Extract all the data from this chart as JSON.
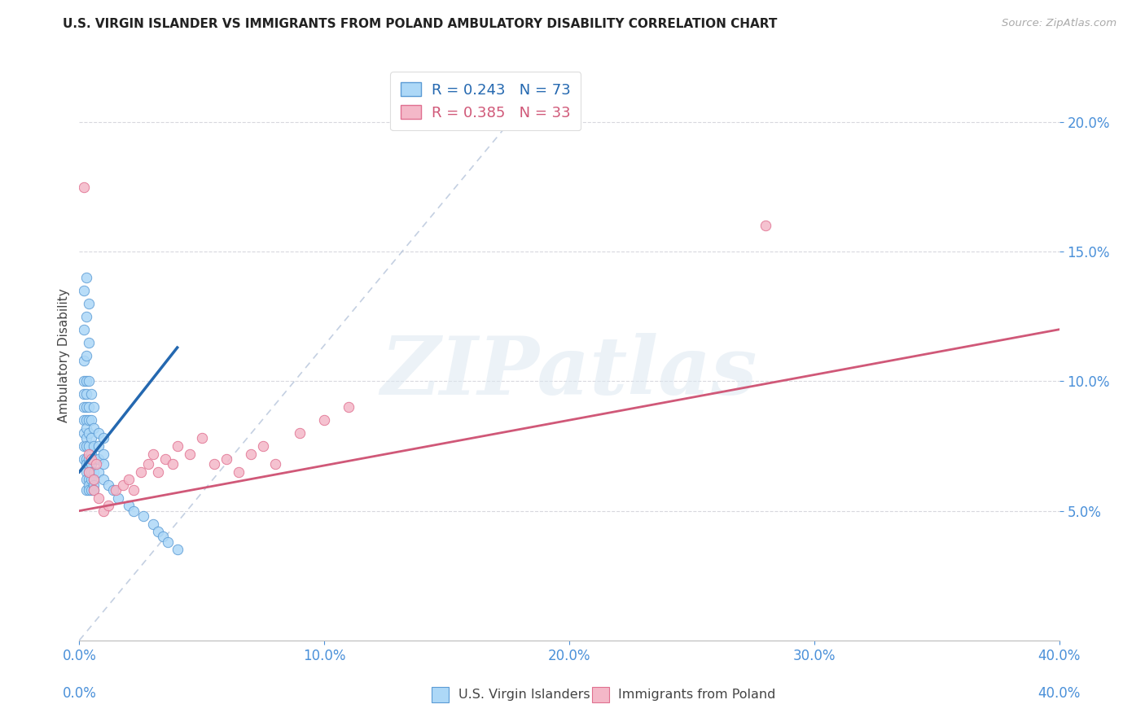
{
  "title": "U.S. VIRGIN ISLANDER VS IMMIGRANTS FROM POLAND AMBULATORY DISABILITY CORRELATION CHART",
  "source": "Source: ZipAtlas.com",
  "ylabel": "Ambulatory Disability",
  "legend1_label": "U.S. Virgin Islanders",
  "legend2_label": "Immigrants from Poland",
  "R1": 0.243,
  "N1": 73,
  "R2": 0.385,
  "N2": 33,
  "blue_face": "#add8f7",
  "blue_edge": "#5b9bd5",
  "pink_face": "#f4b8c8",
  "pink_edge": "#e07090",
  "blue_line_color": "#2468b0",
  "pink_line_color": "#d05878",
  "diag_color": "#b0c0d8",
  "watermark": "ZIPatlas",
  "blue_x": [
    0.002,
    0.002,
    0.002,
    0.002,
    0.002,
    0.002,
    0.002,
    0.002,
    0.002,
    0.002,
    0.003,
    0.003,
    0.003,
    0.003,
    0.003,
    0.003,
    0.003,
    0.003,
    0.003,
    0.003,
    0.003,
    0.003,
    0.003,
    0.003,
    0.003,
    0.004,
    0.004,
    0.004,
    0.004,
    0.004,
    0.004,
    0.004,
    0.004,
    0.004,
    0.004,
    0.004,
    0.004,
    0.004,
    0.005,
    0.005,
    0.005,
    0.005,
    0.005,
    0.005,
    0.005,
    0.005,
    0.006,
    0.006,
    0.006,
    0.006,
    0.006,
    0.006,
    0.006,
    0.006,
    0.008,
    0.008,
    0.008,
    0.008,
    0.01,
    0.01,
    0.01,
    0.01,
    0.012,
    0.014,
    0.016,
    0.02,
    0.022,
    0.026,
    0.03,
    0.032,
    0.034,
    0.036,
    0.04
  ],
  "blue_y": [
    0.135,
    0.12,
    0.108,
    0.1,
    0.095,
    0.09,
    0.085,
    0.08,
    0.075,
    0.07,
    0.14,
    0.125,
    0.11,
    0.1,
    0.095,
    0.09,
    0.085,
    0.082,
    0.078,
    0.075,
    0.07,
    0.068,
    0.065,
    0.062,
    0.058,
    0.13,
    0.115,
    0.1,
    0.09,
    0.085,
    0.08,
    0.075,
    0.07,
    0.068,
    0.065,
    0.062,
    0.06,
    0.058,
    0.095,
    0.085,
    0.078,
    0.072,
    0.068,
    0.065,
    0.062,
    0.058,
    0.09,
    0.082,
    0.075,
    0.07,
    0.065,
    0.062,
    0.06,
    0.058,
    0.08,
    0.075,
    0.07,
    0.065,
    0.078,
    0.072,
    0.068,
    0.062,
    0.06,
    0.058,
    0.055,
    0.052,
    0.05,
    0.048,
    0.045,
    0.042,
    0.04,
    0.038,
    0.035
  ],
  "pink_x": [
    0.002,
    0.004,
    0.004,
    0.005,
    0.006,
    0.006,
    0.007,
    0.008,
    0.01,
    0.012,
    0.015,
    0.018,
    0.02,
    0.022,
    0.025,
    0.028,
    0.03,
    0.032,
    0.035,
    0.038,
    0.04,
    0.045,
    0.05,
    0.055,
    0.06,
    0.065,
    0.07,
    0.075,
    0.08,
    0.09,
    0.1,
    0.11,
    0.28
  ],
  "pink_y": [
    0.175,
    0.072,
    0.065,
    0.07,
    0.062,
    0.058,
    0.068,
    0.055,
    0.05,
    0.052,
    0.058,
    0.06,
    0.062,
    0.058,
    0.065,
    0.068,
    0.072,
    0.065,
    0.07,
    0.068,
    0.075,
    0.072,
    0.078,
    0.068,
    0.07,
    0.065,
    0.072,
    0.075,
    0.068,
    0.08,
    0.085,
    0.09,
    0.16
  ],
  "xlim": [
    0.0,
    0.4
  ],
  "ylim": [
    0.0,
    0.22
  ],
  "xtick_vals": [
    0.0,
    0.1,
    0.2,
    0.3,
    0.4
  ],
  "ytick_vals": [
    0.05,
    0.1,
    0.15,
    0.2
  ],
  "background": "#ffffff"
}
